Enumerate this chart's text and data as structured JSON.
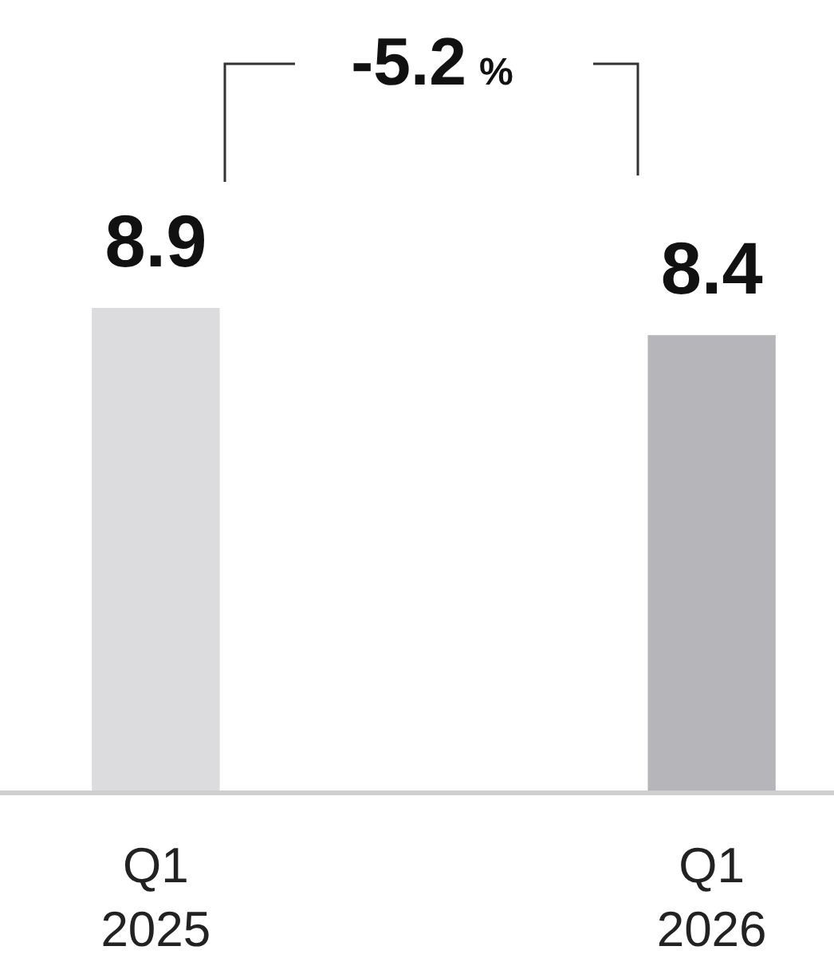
{
  "chart_data": {
    "type": "bar",
    "categories": [
      "Q1 2025",
      "Q1 2026"
    ],
    "values": [
      8.9,
      8.4
    ],
    "colors": [
      "#dcdcde",
      "#b6b5ba"
    ],
    "data_labels": true,
    "annotations": [
      "-5.2%"
    ]
  }
}
